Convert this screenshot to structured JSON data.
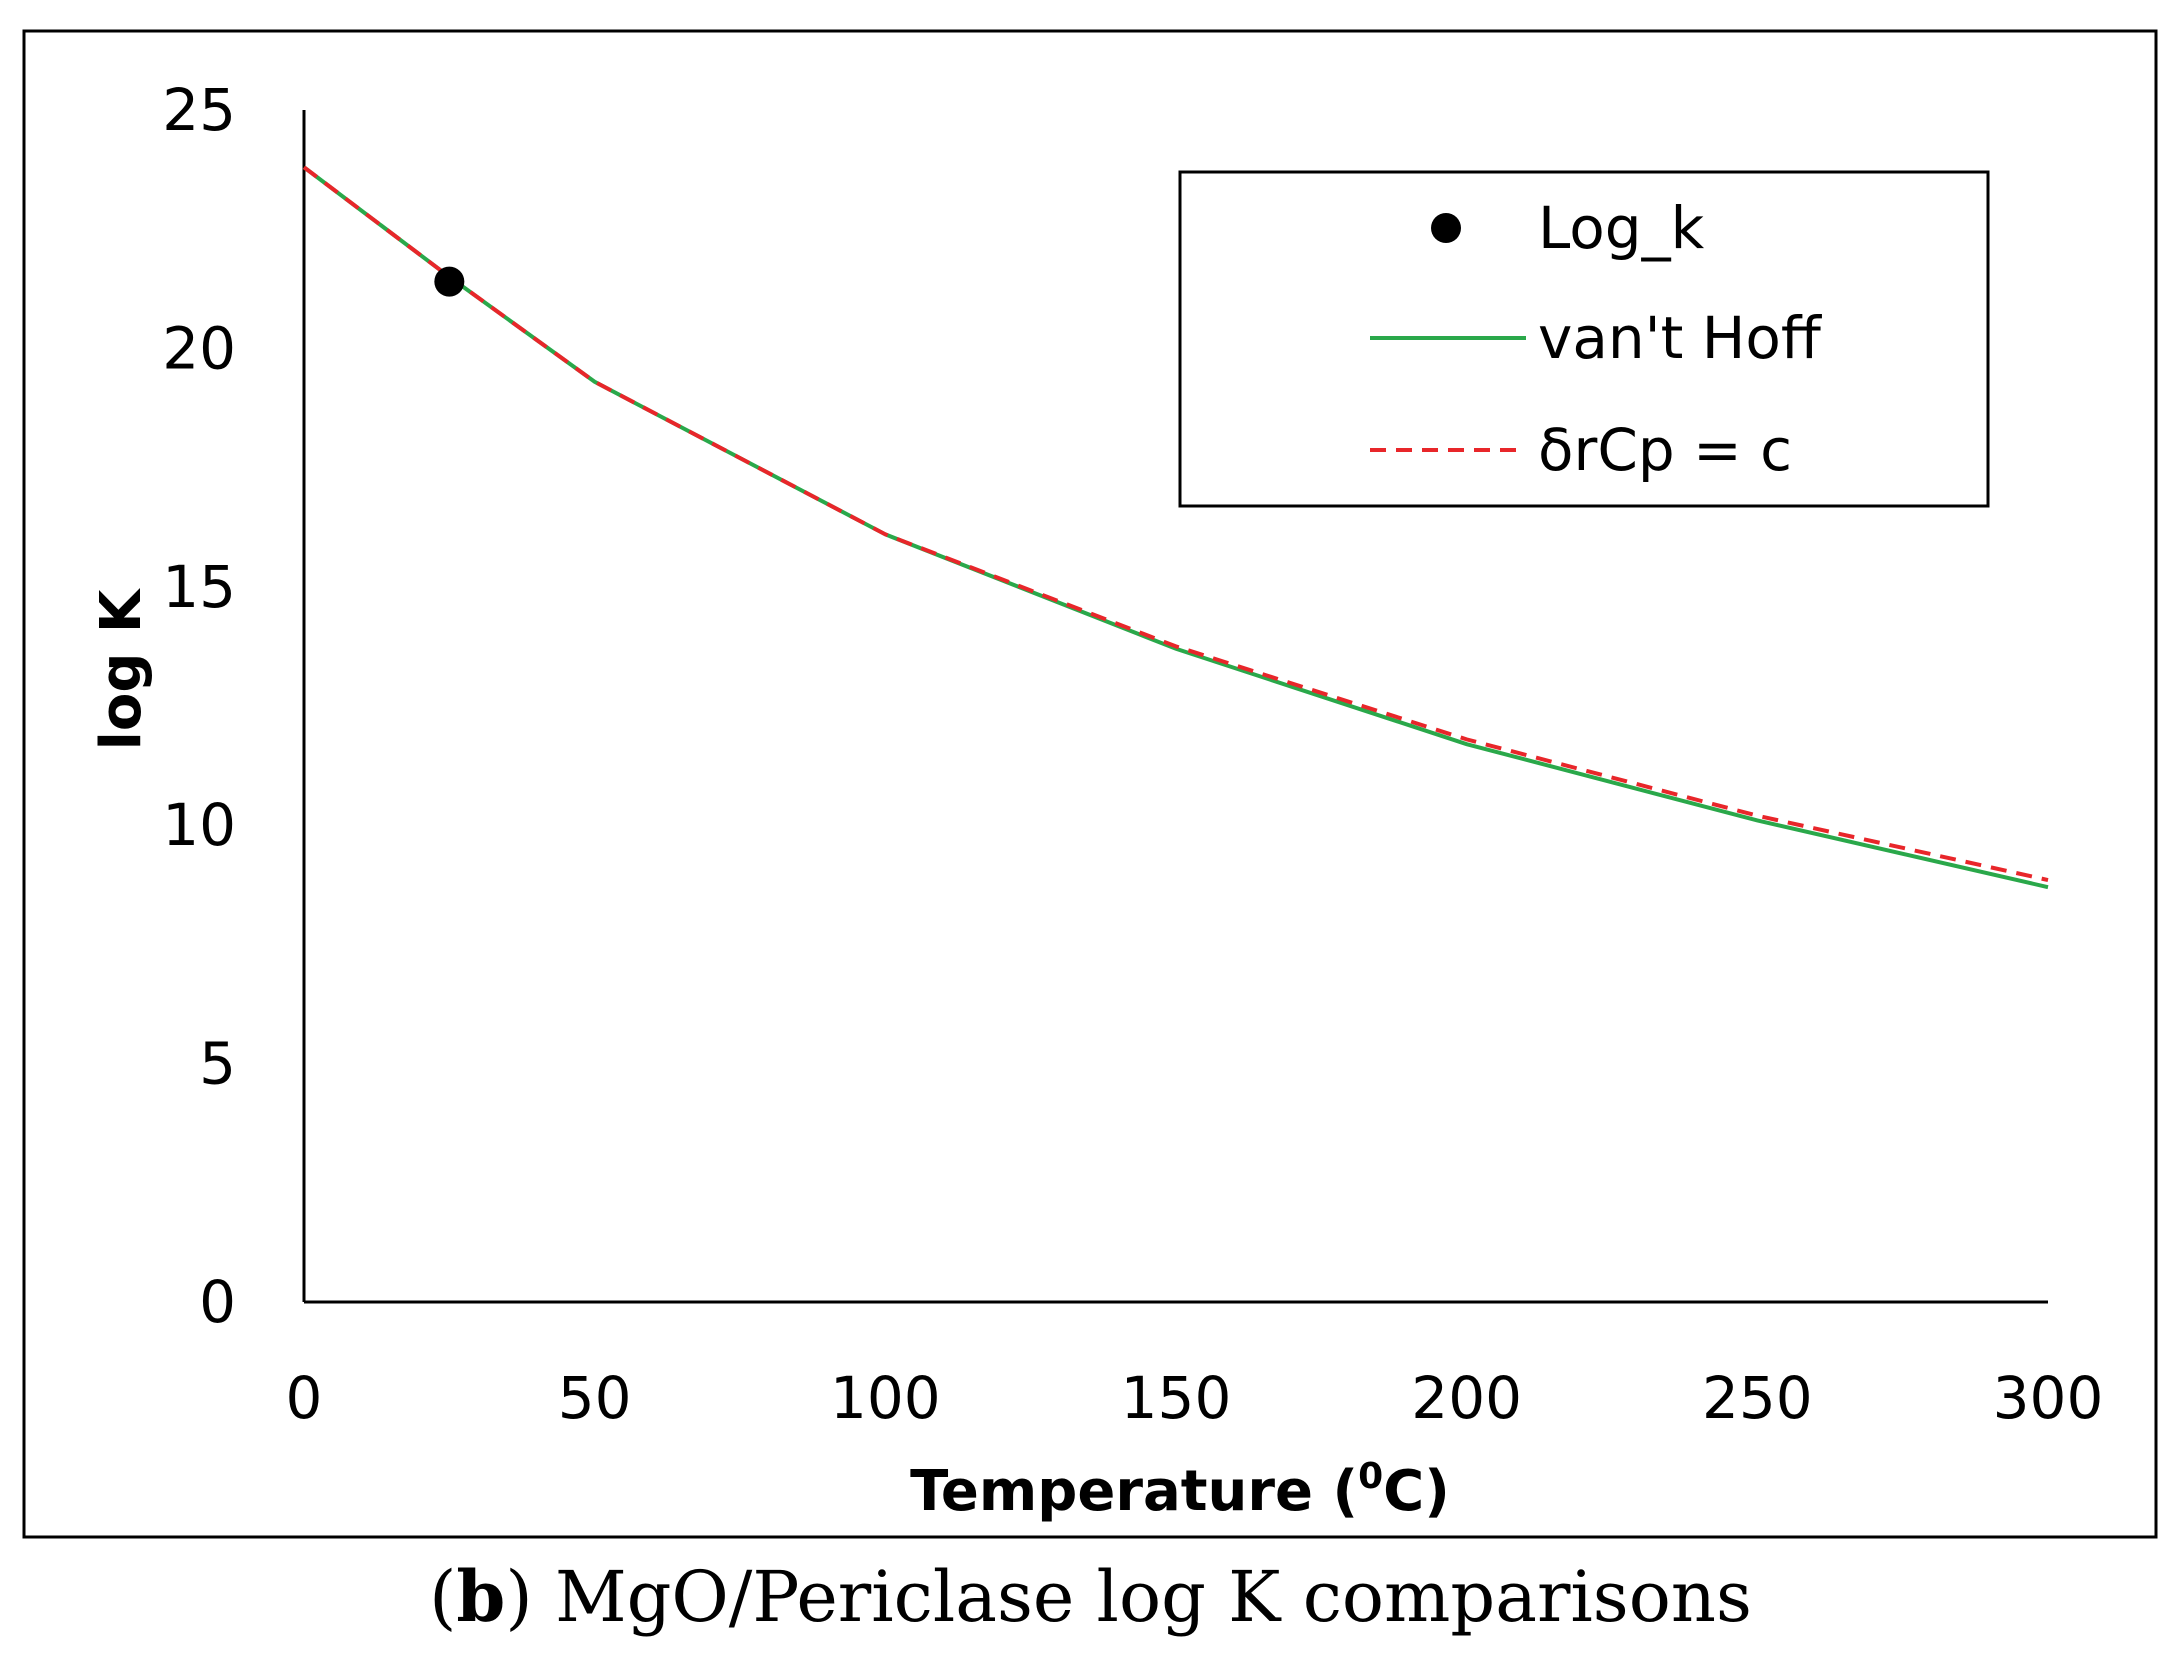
{
  "chart_data": {
    "type": "line",
    "title": "",
    "xlabel": "Temperature (",
    "xlabel_sup": "0",
    "xlabel_suffix": "C)",
    "ylabel": "log K",
    "xlim": [
      0,
      300
    ],
    "ylim": [
      0,
      25
    ],
    "x_ticks": [
      0,
      50,
      100,
      150,
      200,
      250,
      300
    ],
    "y_ticks": [
      0,
      5,
      10,
      15,
      20,
      25
    ],
    "grid": false,
    "legend_position": "top-right",
    "series": [
      {
        "name": "Log_k",
        "kind": "marker",
        "color": "#000000",
        "x": [
          25
        ],
        "y": [
          21.4
        ]
      },
      {
        "name": "van't Hoff",
        "kind": "solid",
        "color": "#2aa84a",
        "x": [
          0,
          25,
          50,
          100,
          150,
          200,
          250,
          300
        ],
        "y": [
          23.8,
          21.5,
          19.3,
          16.1,
          13.7,
          11.7,
          10.1,
          8.7
        ]
      },
      {
        "name": "δrCp = c",
        "kind": "dashed",
        "color": "#e8262a",
        "x": [
          0,
          25,
          50,
          100,
          150,
          200,
          250,
          300
        ],
        "y": [
          23.8,
          21.5,
          19.3,
          16.1,
          13.75,
          11.8,
          10.2,
          8.85
        ]
      }
    ]
  },
  "caption": {
    "label": "b",
    "open": "(",
    "close": ")",
    "text": " MgO/Periclase log K comparisons"
  }
}
